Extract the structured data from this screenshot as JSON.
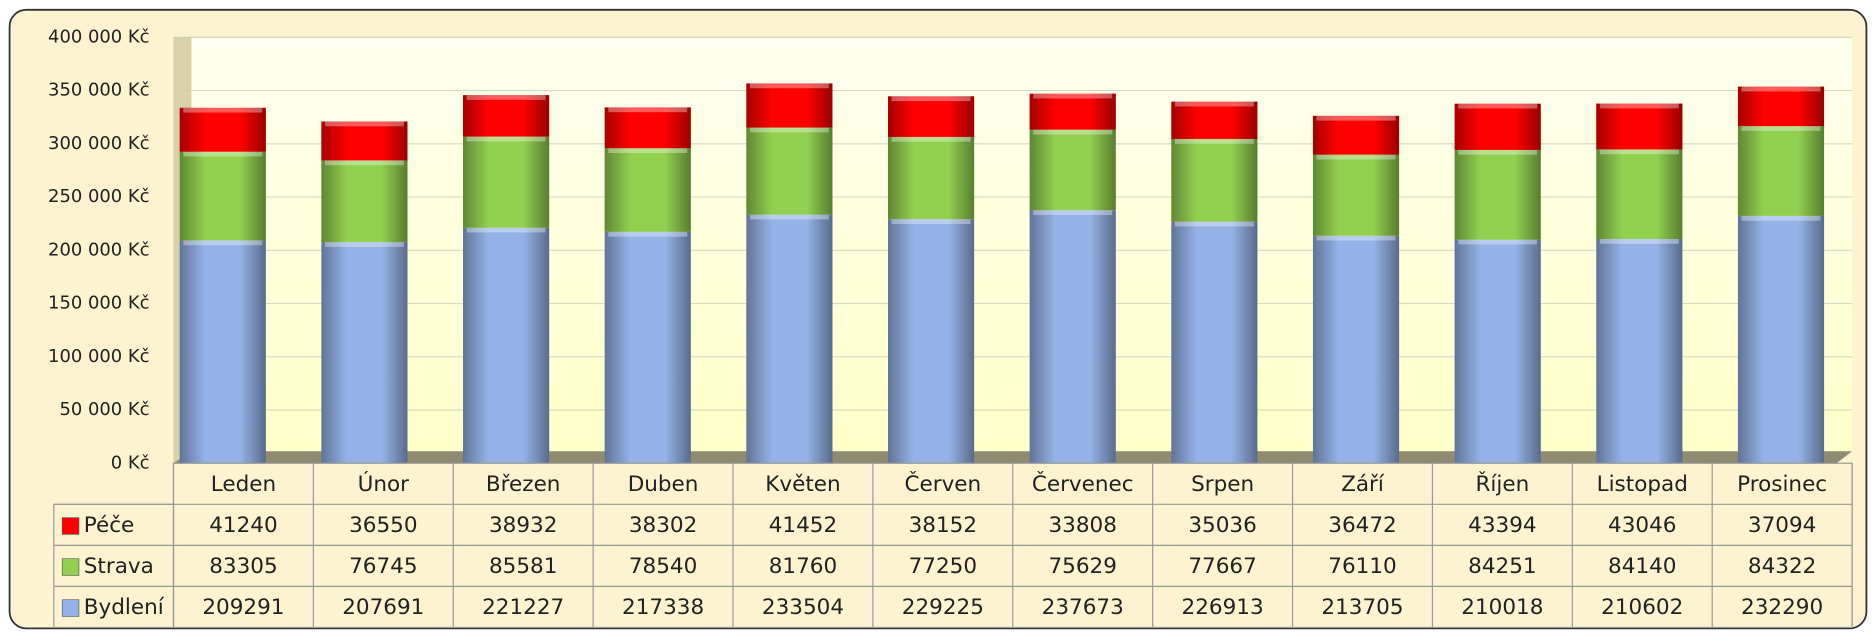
{
  "chart_data": {
    "type": "bar",
    "stacked": true,
    "categories": [
      "Leden",
      "Únor",
      "Březen",
      "Duben",
      "Květen",
      "Červen",
      "Červenec",
      "Srpen",
      "Září",
      "Říjen",
      "Listopad",
      "Prosinec"
    ],
    "series": [
      {
        "name": "Bydlení",
        "color": "#95b3e8",
        "values": [
          209291,
          207691,
          221227,
          217338,
          233504,
          229225,
          237673,
          226913,
          213705,
          210018,
          210602,
          232290
        ]
      },
      {
        "name": "Strava",
        "color": "#92d050",
        "values": [
          83305,
          76745,
          85581,
          78540,
          81760,
          77250,
          75629,
          77667,
          76110,
          84251,
          84140,
          84322
        ]
      },
      {
        "name": "Péče",
        "color": "#ff0000",
        "values": [
          41240,
          36550,
          38932,
          38302,
          41452,
          38152,
          33808,
          35036,
          36472,
          43394,
          43046,
          37094
        ]
      }
    ],
    "ylim": [
      0,
      400000
    ],
    "yticks": [
      {
        "value": 0,
        "label": "0 Kč"
      },
      {
        "value": 50000,
        "label": "50 000 Kč"
      },
      {
        "value": 100000,
        "label": "100 000 Kč"
      },
      {
        "value": 150000,
        "label": "150 000 Kč"
      },
      {
        "value": 200000,
        "label": "200 000 Kč"
      },
      {
        "value": 250000,
        "label": "250 000 Kč"
      },
      {
        "value": 300000,
        "label": "300 000 Kč"
      },
      {
        "value": 350000,
        "label": "350 000 Kč"
      },
      {
        "value": 400000,
        "label": "400 000 Kč"
      }
    ],
    "grid": true,
    "data_table": true
  }
}
